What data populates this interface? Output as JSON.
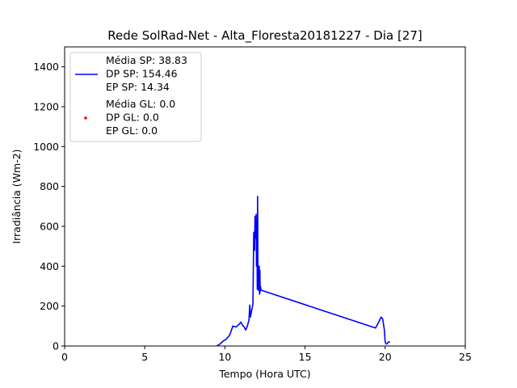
{
  "chart_data": {
    "type": "line",
    "title": "Rede SolRad-Net - Alta_Floresta20181227 - Dia [27]",
    "xlabel": "Tempo (Hora UTC)",
    "ylabel": "Irradiância (Wm-2)",
    "xlim": [
      0,
      25
    ],
    "ylim": [
      0,
      1500
    ],
    "xticks": [
      0,
      5,
      10,
      15,
      20,
      25
    ],
    "yticks": [
      0,
      200,
      400,
      600,
      800,
      1000,
      1200,
      1400
    ],
    "grid": false,
    "legend_placement": "top-left",
    "series": [
      {
        "name": "Média SP: 38.83\nDP SP: 154.46\nEP SP: 14.34",
        "color": "#0000ff",
        "kind": "line",
        "x": [
          9.5,
          9.7,
          9.9,
          10.1,
          10.3,
          10.5,
          10.7,
          10.9,
          11.0,
          11.1,
          11.2,
          11.3,
          11.4,
          11.5,
          11.55,
          11.6,
          11.65,
          11.7,
          11.75,
          11.8,
          11.85,
          11.88,
          11.9,
          11.93,
          11.95,
          11.97,
          12.0,
          12.02,
          12.04,
          12.06,
          12.08,
          12.1,
          12.12,
          12.14,
          12.16,
          12.18,
          12.2,
          12.22,
          12.25,
          19.4,
          19.6,
          19.75,
          19.85,
          19.95,
          20.0,
          20.05,
          20.1,
          20.2,
          20.3
        ],
        "y": [
          0,
          10,
          25,
          35,
          55,
          100,
          95,
          110,
          120,
          105,
          95,
          80,
          100,
          130,
          205,
          145,
          170,
          190,
          210,
          570,
          480,
          650,
          540,
          580,
          660,
          400,
          560,
          285,
          750,
          370,
          280,
          350,
          300,
          400,
          260,
          380,
          270,
          300,
          280,
          90,
          120,
          145,
          135,
          80,
          20,
          10,
          10,
          20,
          20
        ]
      },
      {
        "name": "Média GL: 0.0\nDP GL: 0.0\nEP GL: 0.0",
        "color": "#ff0000",
        "kind": "scatter",
        "x": [],
        "y": []
      }
    ]
  }
}
